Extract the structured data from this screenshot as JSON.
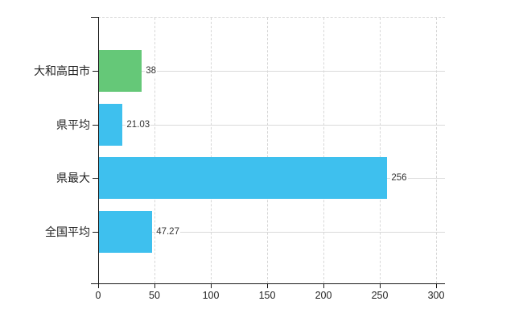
{
  "chart_data": {
    "type": "bar",
    "orientation": "horizontal",
    "title": "",
    "xlabel": "",
    "ylabel": "",
    "categories": [
      "大和高田市",
      "県平均",
      "県最大",
      "全国平均"
    ],
    "values": [
      38,
      21.03,
      256,
      47.27
    ],
    "value_labels": [
      "38",
      "21.03",
      "256",
      "47.27"
    ],
    "bar_colors": [
      "#65c878",
      "#3ec0ee",
      "#3ec0ee",
      "#3ec0ee"
    ],
    "xlim": [
      0,
      300
    ],
    "x_ticks": [
      0,
      50,
      100,
      150,
      200,
      250,
      300
    ],
    "grid": true,
    "grid_style": "vertical-dashed-horizontal-solid",
    "legend": false,
    "background_color": "#ffffff",
    "axis_color": "#1a1a1a",
    "grid_color": "#d9d9d9",
    "text_color": "#222222"
  }
}
